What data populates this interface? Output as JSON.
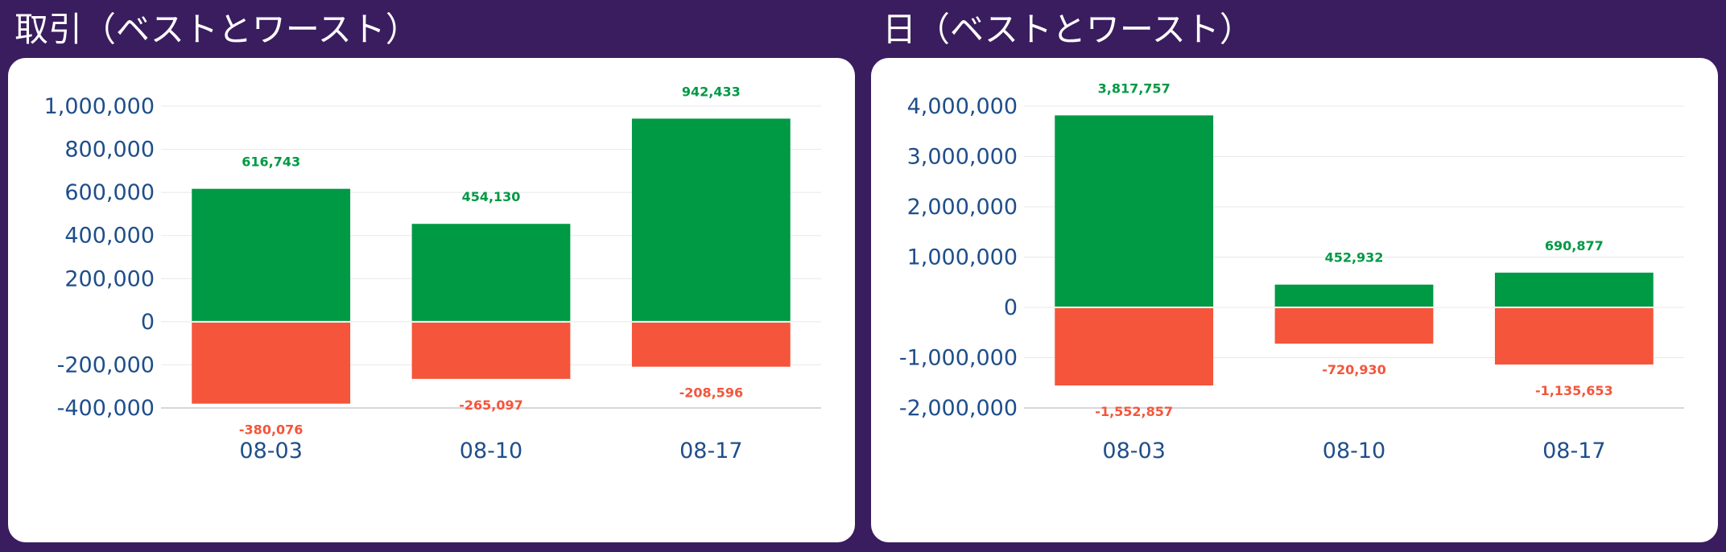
{
  "colors": {
    "background": "#3a1d5e",
    "card": "#ffffff",
    "best": "#009944",
    "worst": "#f4553b",
    "axis_text": "#1f4e8a",
    "grid": "#e8e8ec"
  },
  "chart_data": [
    {
      "type": "bar",
      "title": "取引（ベストとワースト）",
      "categories": [
        "08-03",
        "08-10",
        "08-17"
      ],
      "series": [
        {
          "values": [
            616743,
            454130,
            942433
          ]
        },
        {
          "values": [
            -380076,
            -265097,
            -208596
          ]
        }
      ],
      "data_labels_pos": [
        "616,743",
        "454,130",
        "942,433"
      ],
      "data_labels_neg": [
        "-380,076",
        "-265,097",
        "-208,596"
      ],
      "ylim": [
        -400000,
        1000000
      ],
      "yticks": [
        -400000,
        -200000,
        0,
        200000,
        400000,
        600000,
        800000,
        1000000
      ],
      "ytick_labels": [
        "-400,000",
        "-200,000",
        "0",
        "200,000",
        "400,000",
        "600,000",
        "800,000",
        "1,000,000"
      ],
      "stacked": true,
      "grid": true
    },
    {
      "type": "bar",
      "title": "日（ベストとワースト）",
      "categories": [
        "08-03",
        "08-10",
        "08-17"
      ],
      "series": [
        {
          "values": [
            3817757,
            452932,
            690877
          ]
        },
        {
          "values": [
            -1552857,
            -720930,
            -1135653
          ]
        }
      ],
      "data_labels_pos": [
        "3,817,757",
        "452,932",
        "690,877"
      ],
      "data_labels_neg": [
        "-1,552,857",
        "-720,930",
        "-1,135,653"
      ],
      "ylim": [
        -2000000,
        4000000
      ],
      "yticks": [
        -2000000,
        -1000000,
        0,
        1000000,
        2000000,
        3000000,
        4000000
      ],
      "ytick_labels": [
        "-2,000,000",
        "-1,000,000",
        "0",
        "1,000,000",
        "2,000,000",
        "3,000,000",
        "4,000,000"
      ],
      "stacked": true,
      "grid": true
    }
  ]
}
